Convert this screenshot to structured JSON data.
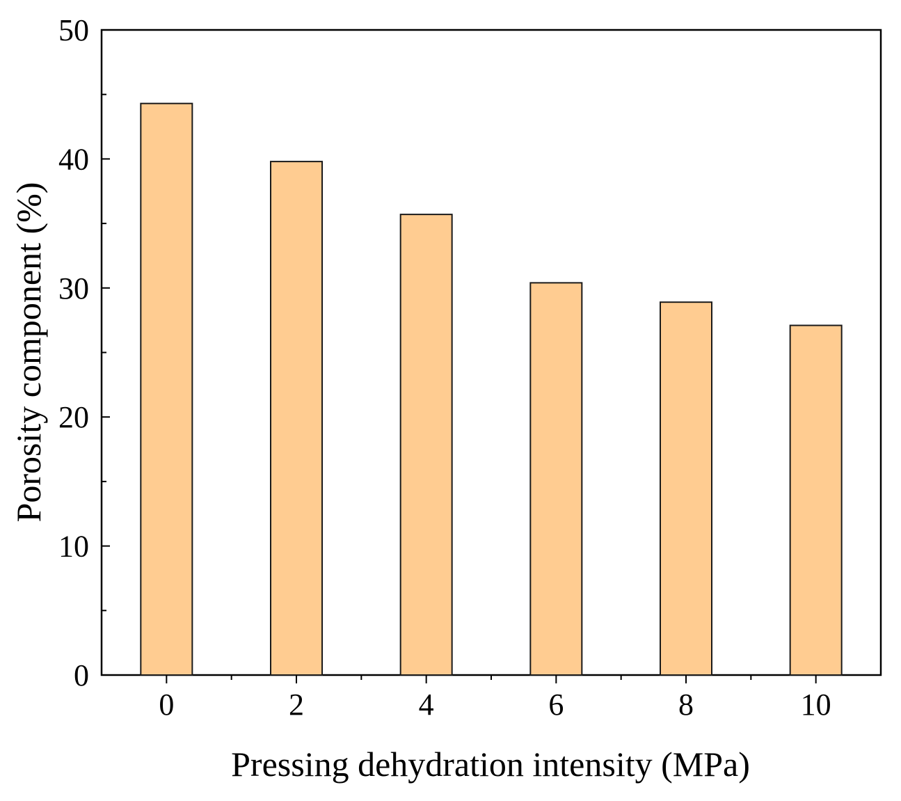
{
  "chart_data": {
    "type": "bar",
    "title": "",
    "xlabel": "Pressing dehydration intensity (MPa)",
    "ylabel": "Porosity component (%)",
    "categories": [
      "0",
      "2",
      "4",
      "6",
      "8",
      "10"
    ],
    "values": [
      44.3,
      39.8,
      35.7,
      30.4,
      28.9,
      27.1
    ],
    "ylim": [
      0,
      50
    ],
    "yticks": [
      "0",
      "10",
      "20",
      "30",
      "40",
      "50"
    ],
    "grid": false,
    "legend": "none",
    "colors": {
      "bar_fill": "#FFCC91",
      "bar_stroke": "#1a1a1a",
      "axis": "#000000"
    }
  }
}
